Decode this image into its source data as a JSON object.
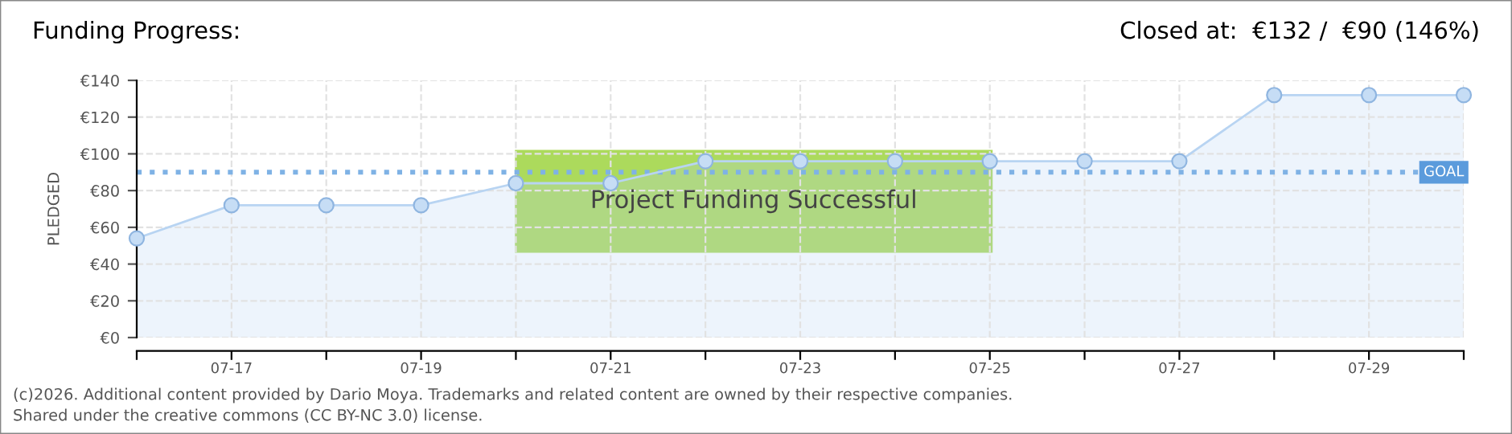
{
  "chart_data": {
    "type": "area",
    "title": "Funding Progress:",
    "subtitle": "Closed at:  €132 /  €90 (146%)",
    "ylabel": "PLEDGED",
    "categories": [
      null,
      "07-17",
      null,
      "07-19",
      null,
      "07-21",
      null,
      "07-23",
      null,
      "07-25",
      null,
      "07-27",
      null,
      "07-29",
      null
    ],
    "series": [
      {
        "color": "#b8d4f2",
        "values": [
          54,
          72,
          72,
          72,
          84,
          84,
          96,
          96,
          96,
          96,
          96,
          96,
          132,
          132,
          132
        ]
      }
    ],
    "ylim": [
      0,
      140
    ],
    "yticks": [
      {
        "value": 0,
        "label": "€0"
      },
      {
        "value": 20,
        "label": "€20"
      },
      {
        "value": 40,
        "label": "€40"
      },
      {
        "value": 60,
        "label": "€60"
      },
      {
        "value": 80,
        "label": "€80"
      },
      {
        "value": 100,
        "label": "€100"
      },
      {
        "value": 120,
        "label": "€120"
      },
      {
        "value": 140,
        "label": "€140"
      }
    ],
    "ref_lines": [
      {
        "axis": "y",
        "value": 90,
        "label": "GOAL",
        "color": "#7fb2e5",
        "line_style": "dotted"
      }
    ],
    "annotations": [
      "Project Funding Successful",
      "(c)2026. Additional content provided by Dario Moya. Trademarks and related content are owned by their respective companies.",
      "Shared under the creative commons (CC BY-NC 3.0) license."
    ],
    "grid": true,
    "marker": "circle",
    "line_style": "solid"
  }
}
